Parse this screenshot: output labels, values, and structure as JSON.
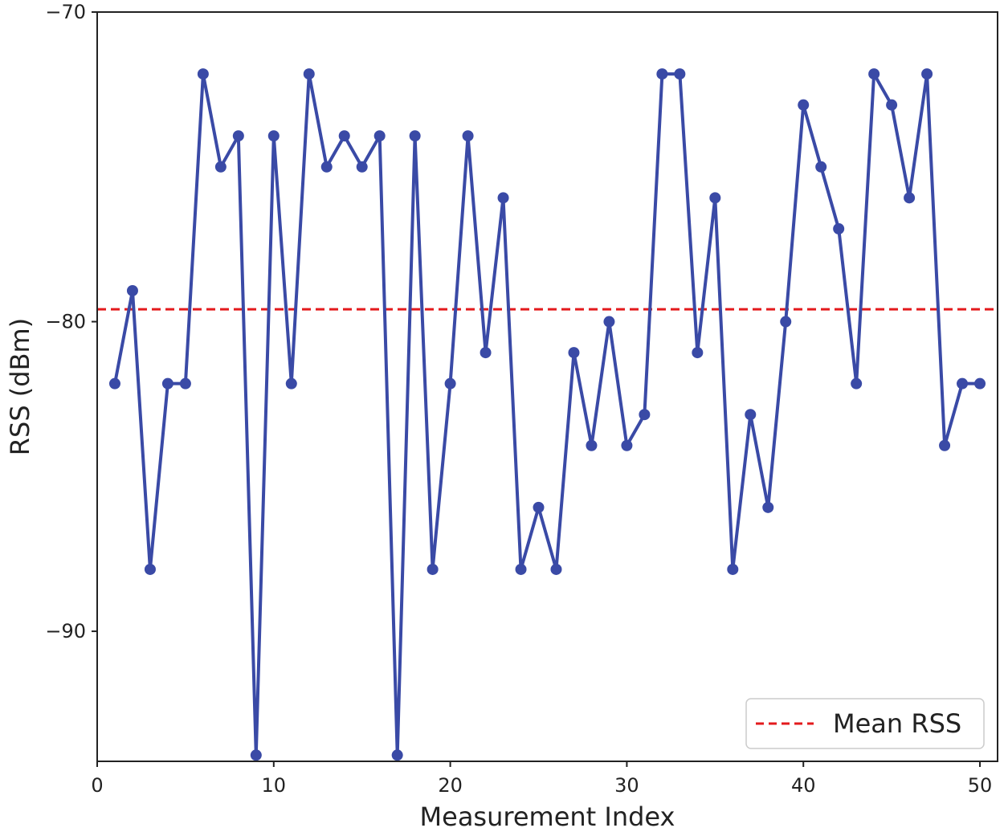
{
  "chart_data": {
    "type": "line",
    "xlabel": "Measurement Index",
    "ylabel": "RSS (dBm)",
    "xlim": [
      0,
      51
    ],
    "ylim": [
      -94.2,
      -70
    ],
    "xticks": [
      0,
      10,
      20,
      30,
      40,
      50
    ],
    "yticks": [
      -70,
      -80,
      -90
    ],
    "xtick_labels": [
      "0",
      "10",
      "20",
      "30",
      "40",
      "50"
    ],
    "ytick_labels": [
      "−70",
      "−80",
      "−90"
    ],
    "grid": false,
    "series": [
      {
        "color": "#3a4aa6",
        "marker": "circle",
        "x": [
          1,
          2,
          3,
          4,
          5,
          6,
          7,
          8,
          9,
          10,
          11,
          12,
          13,
          14,
          15,
          16,
          17,
          18,
          19,
          20,
          21,
          22,
          23,
          24,
          25,
          26,
          27,
          28,
          29,
          30,
          31,
          32,
          33,
          34,
          35,
          36,
          37,
          38,
          39,
          40,
          41,
          42,
          43,
          44,
          45,
          46,
          47,
          48,
          49,
          50
        ],
        "y": [
          -82,
          -79,
          -88,
          -82,
          -82,
          -72,
          -75,
          -74,
          -94,
          -74,
          -82,
          -72,
          -75,
          -74,
          -75,
          -74,
          -94,
          -74,
          -88,
          -82,
          -74,
          -81,
          -76,
          -88,
          -86,
          -88,
          -81,
          -84,
          -80,
          -84,
          -83,
          -72,
          -72,
          -81,
          -76,
          -88,
          -83,
          -86,
          -80,
          -73,
          -75,
          -77,
          -82,
          -72,
          -73,
          -76,
          -72,
          -84,
          -82,
          -82
        ]
      }
    ],
    "reference_lines": [
      {
        "name": "Mean RSS",
        "orientation": "horizontal",
        "y": -79.6,
        "color": "#e31a1c",
        "style": "dashed"
      }
    ],
    "legend": {
      "position": "bottom-right",
      "entries": [
        "Mean RSS"
      ]
    }
  }
}
